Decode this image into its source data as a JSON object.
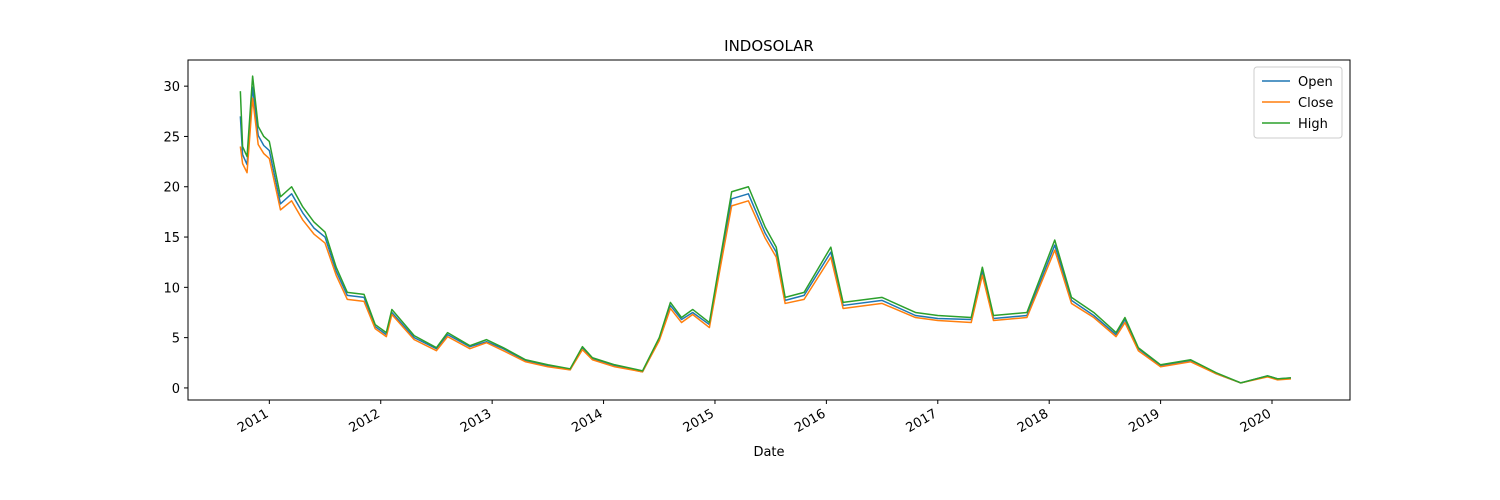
{
  "chart_data": {
    "type": "line",
    "title": "INDOSOLAR",
    "x_label": "Date",
    "x": [
      2010.74,
      2010.76,
      2010.8,
      2010.85,
      2010.9,
      2010.95,
      2011.0,
      2011.1,
      2011.2,
      2011.3,
      2011.4,
      2011.5,
      2011.6,
      2011.7,
      2011.85,
      2011.95,
      2012.05,
      2012.1,
      2012.3,
      2012.5,
      2012.6,
      2012.8,
      2012.95,
      2013.1,
      2013.3,
      2013.5,
      2013.7,
      2013.81,
      2013.9,
      2014.1,
      2014.35,
      2014.5,
      2014.6,
      2014.7,
      2014.8,
      2014.95,
      2015.05,
      2015.15,
      2015.3,
      2015.45,
      2015.55,
      2015.63,
      2015.8,
      2016.04,
      2016.15,
      2016.5,
      2016.8,
      2017.0,
      2017.3,
      2017.4,
      2017.5,
      2017.8,
      2018.05,
      2018.2,
      2018.4,
      2018.6,
      2018.68,
      2018.8,
      2019.0,
      2019.27,
      2019.5,
      2019.72,
      2019.96,
      2020.05,
      2020.17
    ],
    "series": [
      {
        "name": "Open",
        "color": "#1f77b4",
        "values": [
          27.0,
          23.2,
          22.2,
          29.9,
          25.1,
          24.1,
          23.6,
          18.3,
          19.3,
          17.4,
          15.9,
          15.0,
          11.6,
          9.2,
          9.0,
          6.1,
          5.3,
          7.5,
          5.0,
          3.9,
          5.3,
          4.1,
          4.6,
          3.9,
          2.7,
          2.2,
          1.8,
          4.0,
          2.9,
          2.2,
          1.6,
          4.8,
          8.2,
          6.8,
          7.5,
          6.3,
          12.5,
          18.8,
          19.3,
          15.4,
          13.5,
          8.7,
          9.2,
          13.5,
          8.2,
          8.7,
          7.2,
          6.9,
          6.8,
          11.6,
          6.9,
          7.2,
          14.2,
          8.7,
          7.2,
          5.3,
          6.8,
          3.9,
          2.2,
          2.7,
          1.4,
          0.5,
          1.2,
          0.9,
          1.0
        ]
      },
      {
        "name": "Close",
        "color": "#ff7f0e",
        "values": [
          24.0,
          22.3,
          21.4,
          28.8,
          24.2,
          23.3,
          22.8,
          17.7,
          18.6,
          16.7,
          15.3,
          14.4,
          11.2,
          8.8,
          8.6,
          5.9,
          5.1,
          7.3,
          4.8,
          3.7,
          5.1,
          3.9,
          4.5,
          3.7,
          2.6,
          2.1,
          1.8,
          3.8,
          2.8,
          2.1,
          1.6,
          4.7,
          7.9,
          6.5,
          7.3,
          6.0,
          12.1,
          18.1,
          18.6,
          14.9,
          13.0,
          8.4,
          8.8,
          13.0,
          7.9,
          8.4,
          7.0,
          6.7,
          6.5,
          11.2,
          6.7,
          7.0,
          13.7,
          8.4,
          7.0,
          5.1,
          6.5,
          3.7,
          2.1,
          2.6,
          1.4,
          0.5,
          1.1,
          0.8,
          0.9
        ]
      },
      {
        "name": "High",
        "color": "#2ca02c",
        "values": [
          29.5,
          24,
          23,
          31,
          26,
          25,
          24.5,
          19,
          20,
          18,
          16.5,
          15.5,
          12,
          9.5,
          9.3,
          6.3,
          5.5,
          7.8,
          5.2,
          4.0,
          5.5,
          4.2,
          4.8,
          4.0,
          2.8,
          2.3,
          1.9,
          4.1,
          3.0,
          2.3,
          1.7,
          5.0,
          8.5,
          7.0,
          7.8,
          6.5,
          13,
          19.5,
          20,
          16,
          14,
          9,
          9.5,
          14,
          8.5,
          9,
          7.5,
          7.2,
          7.0,
          12,
          7.2,
          7.5,
          14.7,
          9,
          7.5,
          5.5,
          7,
          4,
          2.3,
          2.8,
          1.5,
          0.5,
          1.2,
          0.9,
          1.0
        ]
      }
    ],
    "xlim": [
      2010.27,
      2020.7
    ],
    "xticks": [
      2011,
      2012,
      2013,
      2014,
      2015,
      2016,
      2017,
      2018,
      2019,
      2020
    ],
    "ylim": [
      -1.2,
      32.6
    ],
    "yticks": [
      0,
      5,
      10,
      15,
      20,
      25,
      30
    ],
    "legend": "upper right",
    "grid": false
  }
}
